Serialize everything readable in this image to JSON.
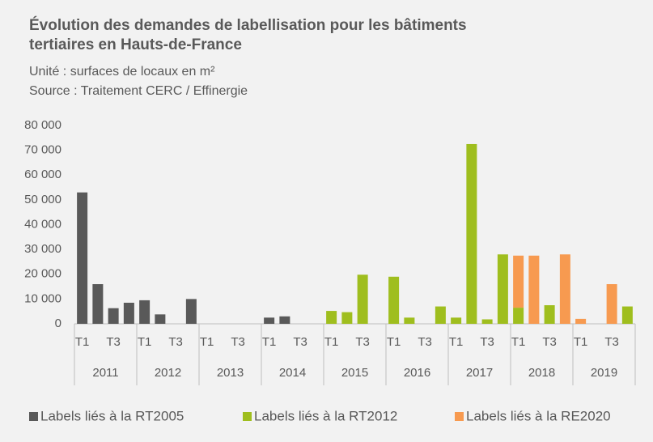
{
  "chart_data": {
    "type": "stacked_bar",
    "title": "Évolution des demandes de labellisation pour les bâtiments tertiaires en Hauts-de-France",
    "subtitle": "Unité : surfaces de locaux en m²",
    "source": "Source :  Traitement CERC / Effinergie",
    "categories": [
      "T1",
      null,
      "T3",
      null,
      "T1",
      null,
      "T3",
      null,
      "T1",
      null,
      "T3",
      null,
      "T1",
      null,
      "T3",
      null,
      "T1",
      null,
      "T3",
      null,
      "T1",
      null,
      "T3",
      null,
      "T1",
      null,
      "T3",
      null,
      "T1",
      null,
      "T3",
      null,
      "T1",
      null,
      "T3",
      null
    ],
    "groups": [
      "2011",
      "2012",
      "2013",
      "2014",
      "2015",
      "2016",
      "2017",
      "2018",
      "2019"
    ],
    "series": [
      {
        "name": "Labels liés à la RT2005",
        "color": "#595959",
        "values": [
          53000,
          16000,
          6300,
          8500,
          9500,
          3800,
          0,
          10000,
          0,
          0,
          0,
          0,
          2500,
          3000,
          0,
          0,
          0,
          0,
          0,
          0,
          0,
          0,
          0,
          0,
          0,
          0,
          0,
          0,
          0,
          0,
          0,
          0,
          0,
          0,
          0,
          0
        ]
      },
      {
        "name": "Labels liés à la RT2012",
        "color": "#9fbe1e",
        "values": [
          0,
          0,
          0,
          0,
          0,
          0,
          0,
          0,
          0,
          0,
          0,
          0,
          0,
          0,
          0,
          0,
          5200,
          4700,
          19800,
          0,
          19000,
          2500,
          0,
          7000,
          2500,
          72500,
          1800,
          28000,
          6500,
          0,
          7500,
          0,
          0,
          0,
          0,
          7000
        ]
      },
      {
        "name": "Labels liés à la RE2020",
        "color": "#f79a50",
        "values": [
          0,
          0,
          0,
          0,
          0,
          0,
          0,
          0,
          0,
          0,
          0,
          0,
          0,
          0,
          0,
          0,
          0,
          0,
          0,
          0,
          0,
          0,
          0,
          0,
          0,
          0,
          0,
          0,
          21000,
          27500,
          0,
          28000,
          2000,
          0,
          16000,
          0
        ]
      }
    ],
    "ylim": [
      0,
      80000
    ],
    "yticks": [
      0,
      {
        "value": 10000,
        "label": "10 000"
      },
      {
        "value": 20000,
        "label": "20 000"
      },
      {
        "value": 30000,
        "label": "30 000"
      },
      {
        "value": 40000,
        "label": "40 000"
      },
      {
        "value": 50000,
        "label": "50 000"
      },
      {
        "value": 60000,
        "label": "60 000"
      },
      {
        "value": 70000,
        "label": "70 000"
      },
      {
        "value": 80000,
        "label": "80 000"
      }
    ],
    "legend": "bottom"
  }
}
